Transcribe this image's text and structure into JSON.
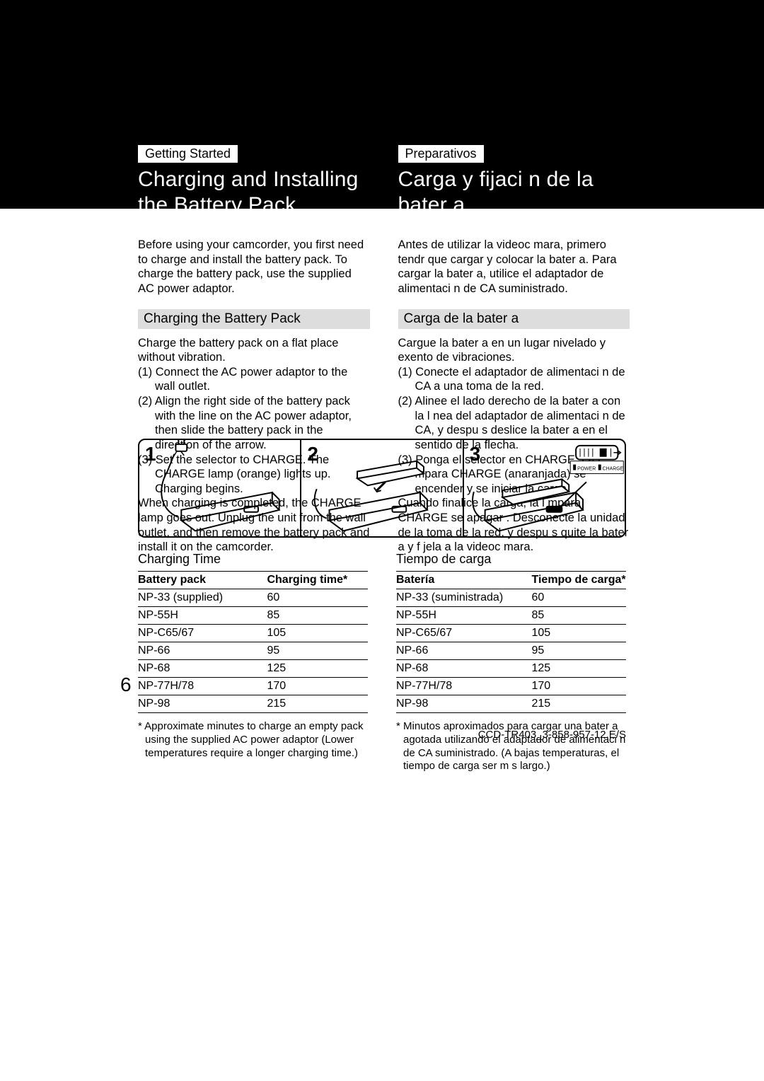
{
  "left": {
    "tag": "Getting Started",
    "title1": "Charging and Installing",
    "title2": "the Battery Pack",
    "intro": "Before using your camcorder, you first need to charge and install the battery pack. To charge the battery pack, use the supplied AC power adaptor.",
    "subhead": "Charging the Battery Pack",
    "p1": "Charge the battery pack on a flat place without vibration.",
    "s1": "(1) Connect the AC power adaptor to the wall outlet.",
    "s2": "(2) Align the right side of the battery pack with the line on the AC power adaptor, then slide the battery pack in the direction of the arrow.",
    "s3": "(3) Set the selector to CHARGE. The CHARGE lamp (orange) lights up. Charging begins.",
    "p2": "When charging is completed, the CHARGE lamp goes out. Unplug the unit from the wall outlet, and then remove the battery pack and install it on the camcorder.",
    "tableTitle": "Charging Time",
    "th1": "Battery pack",
    "th2": "Charging time*",
    "rows": [
      [
        "NP-33 (supplied)",
        "60"
      ],
      [
        "NP-55H",
        "85"
      ],
      [
        "NP-C65/67",
        "105"
      ],
      [
        "NP-66",
        "95"
      ],
      [
        "NP-68",
        "125"
      ],
      [
        "NP-77H/78",
        "170"
      ],
      [
        "NP-98",
        "215"
      ]
    ],
    "footnote": "* Approximate minutes to charge an empty pack using the supplied AC power adaptor (Lower temperatures require a longer charging time.)"
  },
  "right": {
    "tag": "Preparativos",
    "title1": "Carga y fijaci n de la",
    "title2": "bater a",
    "intro": "Antes de utilizar la videoc mara, primero tendr  que cargar y colocar la bater a. Para cargar la bater a, utilice el adaptador de alimentaci n de CA suministrado.",
    "subhead": "Carga de la bater a",
    "p1": "Cargue la bater a en un lugar nivelado y exento de vibraciones.",
    "s1": "(1) Conecte el adaptador de alimentaci n de CA a una toma de la red.",
    "s2": "(2) Alinee el lado derecho de la bater a con la l nea del adaptador de alimentaci n de CA, y despu s deslice la bater a en el sentido de la flecha.",
    "s3": "(3) Ponga el selector en CHARGE. La l mpara CHARGE (anaranjada) se encender  y se iniciar  la carga.",
    "p2": "Cuando finalice la carga, la l mpara CHARGE se apagar . Desconecte la unidad de la toma de la red, y despu s quite la bater a y f jela a la videoc mara.",
    "tableTitle": "Tiempo de carga",
    "th1": "Batería",
    "th2": "Tiempo de carga*",
    "rows": [
      [
        "NP-33 (suministrada)",
        "60"
      ],
      [
        "NP-55H",
        "85"
      ],
      [
        "NP-C65/67",
        "105"
      ],
      [
        "NP-66",
        "95"
      ],
      [
        "NP-68",
        "125"
      ],
      [
        "NP-77H/78",
        "170"
      ],
      [
        "NP-98",
        "215"
      ]
    ],
    "footnote": "* Minutos aproximados para cargar una bater a agotada utilizando el adaptador de alimentaci n de CA suministrado.  (A bajas temperaturas, el tiempo de carga ser  m s largo.)"
  },
  "diagram": {
    "numbers": [
      "1",
      "2",
      "3"
    ],
    "step3": {
      "power": "POWER",
      "charge": "CHARGE"
    }
  },
  "pageNumber": "6",
  "footer": "CCD-TR403_3-858-957-12.E/S",
  "colors": {
    "black": "#000000",
    "white": "#ffffff",
    "subheadBg": "#dddddd"
  }
}
